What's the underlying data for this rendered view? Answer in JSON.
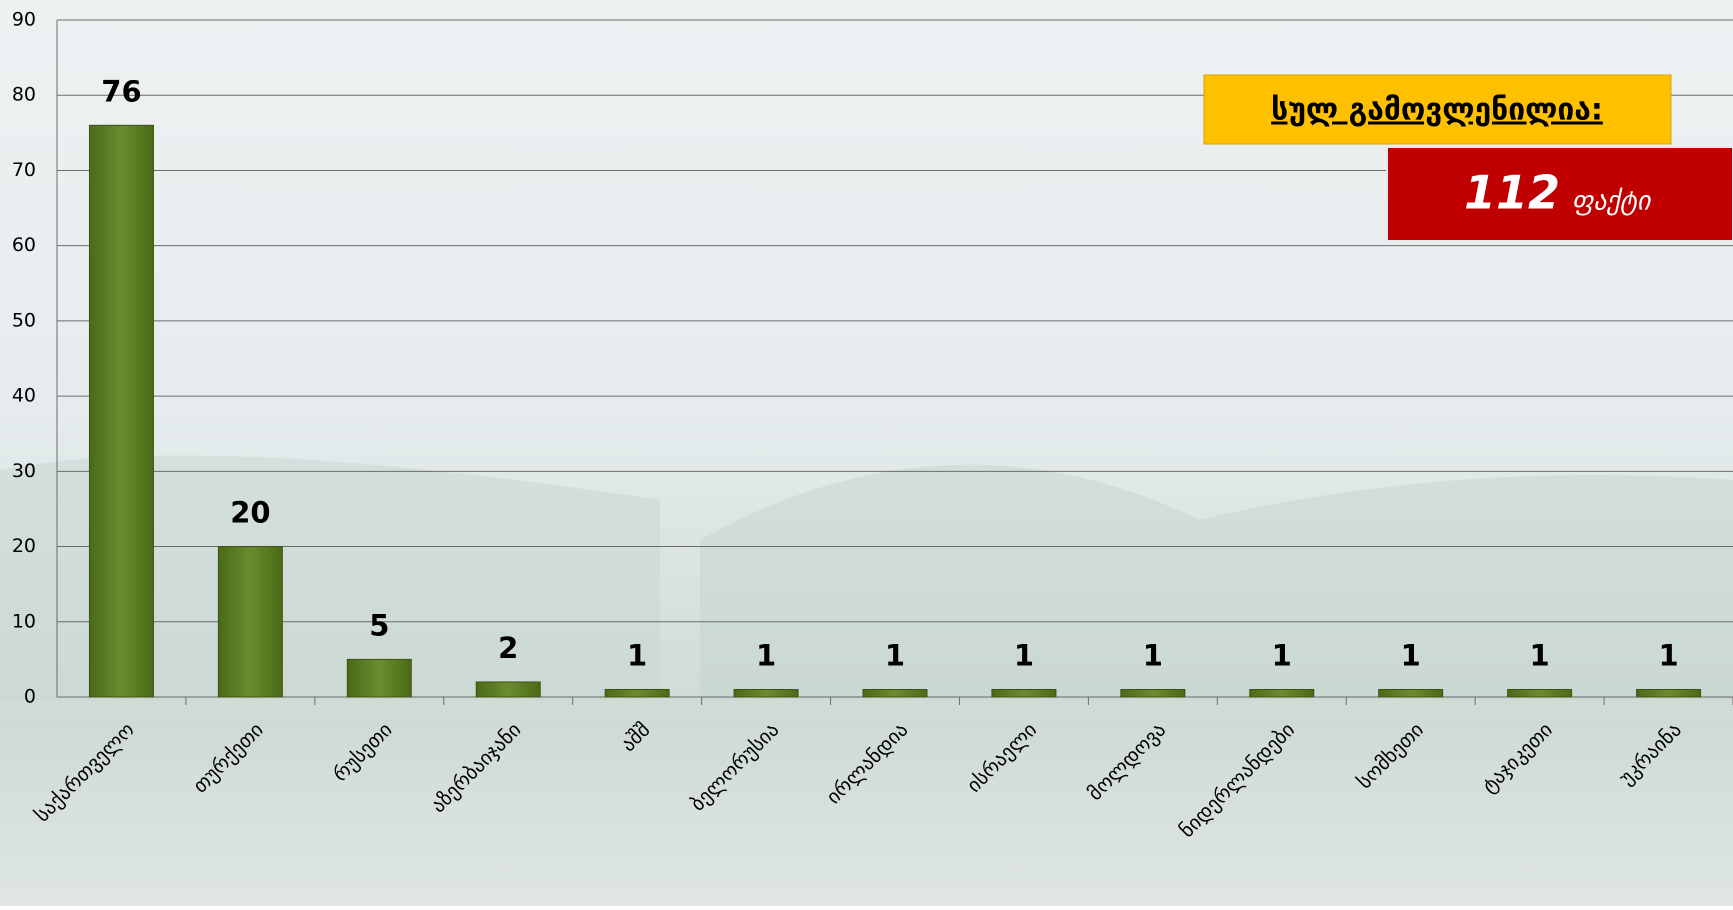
{
  "chart_data": {
    "type": "bar",
    "categories": [
      "საქართველო",
      "თურქეთი",
      "რუსეთი",
      "აზერბაიჯანი",
      "აშშ",
      "ბელორუსია",
      "ირლანდია",
      "ისრაელი",
      "მოლდოვა",
      "ნიდერლანდები",
      "სომხეთი",
      "ტაჯიკეთი",
      "უკრაინა"
    ],
    "values": [
      76,
      20,
      5,
      2,
      1,
      1,
      1,
      1,
      1,
      1,
      1,
      1,
      1
    ],
    "color": "#5a7a22",
    "ylim": [
      0,
      90
    ],
    "yticks": [
      0,
      10,
      20,
      30,
      40,
      50,
      60,
      70,
      80,
      90
    ],
    "grid": true
  },
  "box": {
    "title": "სულ გამოვლენილია:",
    "count": 112,
    "unit": "ფაქტი"
  }
}
